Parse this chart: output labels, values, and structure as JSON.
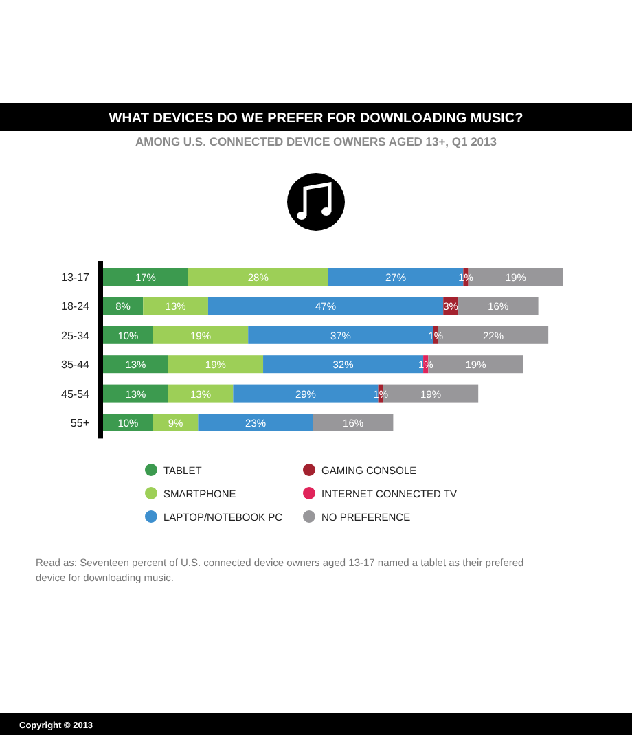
{
  "chart_data": {
    "type": "bar",
    "orientation": "horizontal",
    "stacked": true,
    "title": "WHAT DEVICES DO WE PREFER FOR DOWNLOADING MUSIC?",
    "subtitle": "AMONG U.S. CONNECTED DEVICE OWNERS AGED 13+, Q1 2013",
    "categories": [
      "13-17",
      "18-24",
      "25-34",
      "35-44",
      "45-54",
      "55+"
    ],
    "legend": "bottom",
    "series": [
      {
        "name": "TABLET",
        "color": "#3c9a4f",
        "values": [
          17,
          8,
          10,
          13,
          13,
          10
        ],
        "value_labels": [
          "17%",
          "8%",
          "10%",
          "13%",
          "13%",
          "10%"
        ]
      },
      {
        "name": "SMARTPHONE",
        "color": "#9dcf57",
        "values": [
          28,
          13,
          19,
          19,
          13,
          9
        ],
        "value_labels": [
          "28%",
          "13%",
          "19%",
          "19%",
          "13%",
          "9%"
        ]
      },
      {
        "name": "LAPTOP/NOTEBOOK PC",
        "color": "#3d8fce",
        "values": [
          27,
          47,
          37,
          32,
          29,
          23
        ],
        "value_labels": [
          "27%",
          "47%",
          "37%",
          "32%",
          "29%",
          "23%"
        ]
      },
      {
        "name": "GAMING CONSOLE",
        "color": "#a3222f",
        "values": [
          1,
          3,
          1,
          null,
          1,
          null
        ],
        "value_labels": [
          "1%",
          "3%",
          "1%",
          null,
          "1%",
          null
        ]
      },
      {
        "name": "INTERNET CONNECTED TV",
        "color": "#e0245a",
        "values": [
          null,
          null,
          null,
          1,
          null,
          null
        ],
        "value_labels": [
          null,
          null,
          null,
          "1%",
          null,
          null
        ]
      },
      {
        "name": "NO PREFERENCE",
        "color": "#98979a",
        "values": [
          19,
          16,
          22,
          19,
          19,
          16
        ],
        "value_labels": [
          "19%",
          "16%",
          "22%",
          "19%",
          "19%",
          "16%"
        ]
      }
    ],
    "annotations": [
      "Read as: Seventeen percent of U.S. connected device owners aged 13-17 named a tablet as their prefered device for downloading music.",
      "Copyright © 2013"
    ]
  }
}
